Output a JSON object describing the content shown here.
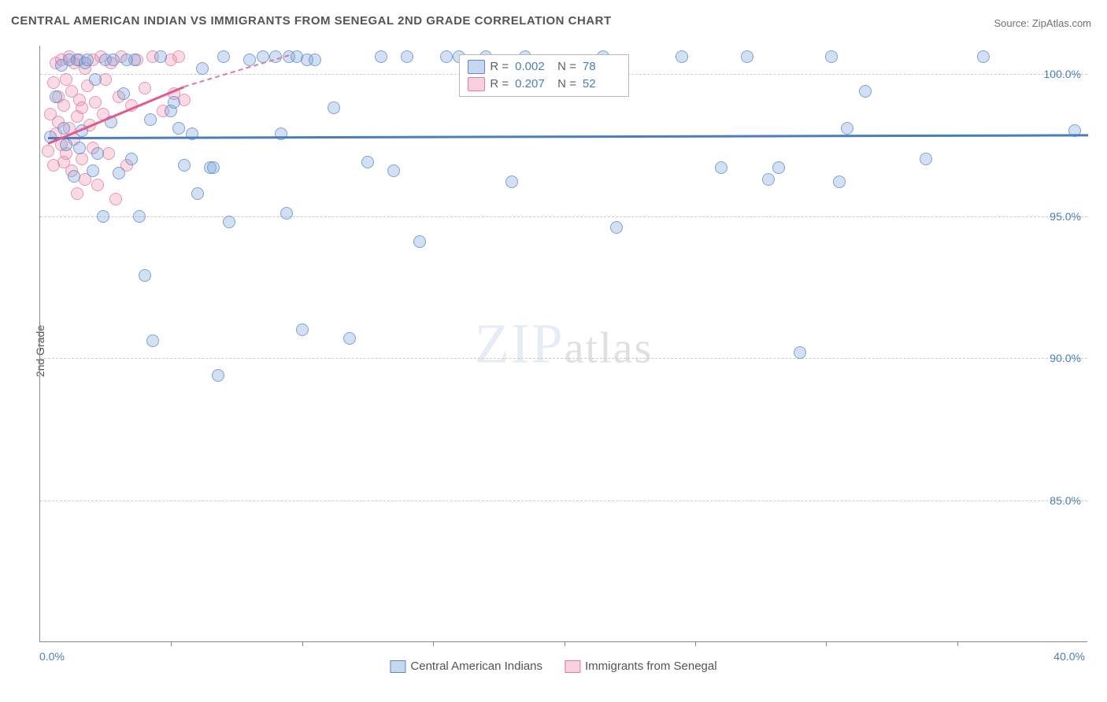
{
  "title": "CENTRAL AMERICAN INDIAN VS IMMIGRANTS FROM SENEGAL 2ND GRADE CORRELATION CHART",
  "source": "Source: ZipAtlas.com",
  "ylabel": "2nd Grade",
  "watermark": {
    "zip": "ZIP",
    "atlas": "atlas"
  },
  "chart": {
    "type": "scatter",
    "xlim": [
      0,
      40
    ],
    "ylim": [
      80,
      101
    ],
    "xtick_step": 5,
    "yticks": [
      85.0,
      90.0,
      95.0,
      100.0
    ],
    "ytick_labels": [
      "85.0%",
      "90.0%",
      "95.0%",
      "100.0%"
    ],
    "xtick_min_label": "0.0%",
    "xtick_max_label": "40.0%",
    "marker_size": 16,
    "grid_color": "#cccccc",
    "background_color": "#ffffff",
    "axis_color": "#888888",
    "label_fontsize": 14,
    "title_fontsize": 15,
    "tick_color": "#4a7ebb"
  },
  "series": {
    "blue": {
      "label": "Central American Indians",
      "R": "0.002",
      "N": "78",
      "color": "#5a88c8",
      "fill": "rgba(120,160,220,0.42)",
      "trend": {
        "x1": 0.3,
        "y1": 97.8,
        "x2": 40.0,
        "y2": 97.9,
        "dashed": false
      },
      "points": [
        [
          0.4,
          97.8
        ],
        [
          0.6,
          99.2
        ],
        [
          0.8,
          100.3
        ],
        [
          0.9,
          98.1
        ],
        [
          1.0,
          97.5
        ],
        [
          1.1,
          100.5
        ],
        [
          1.3,
          96.4
        ],
        [
          1.4,
          100.5
        ],
        [
          1.5,
          97.4
        ],
        [
          1.6,
          98.0
        ],
        [
          1.7,
          100.4
        ],
        [
          1.8,
          100.5
        ],
        [
          2.0,
          96.6
        ],
        [
          2.1,
          99.8
        ],
        [
          2.2,
          97.2
        ],
        [
          2.4,
          95.0
        ],
        [
          2.5,
          100.5
        ],
        [
          2.7,
          98.3
        ],
        [
          2.8,
          100.5
        ],
        [
          3.0,
          96.5
        ],
        [
          3.2,
          99.3
        ],
        [
          3.3,
          100.5
        ],
        [
          3.5,
          97.0
        ],
        [
          3.6,
          100.5
        ],
        [
          3.8,
          95.0
        ],
        [
          4.0,
          92.9
        ],
        [
          4.2,
          98.4
        ],
        [
          4.3,
          90.6
        ],
        [
          4.6,
          100.6
        ],
        [
          5.0,
          98.7
        ],
        [
          5.1,
          99.0
        ],
        [
          5.3,
          98.1
        ],
        [
          5.5,
          96.8
        ],
        [
          5.8,
          97.9
        ],
        [
          6.0,
          95.8
        ],
        [
          6.2,
          100.2
        ],
        [
          6.5,
          96.7
        ],
        [
          6.6,
          96.7
        ],
        [
          6.8,
          89.4
        ],
        [
          7.0,
          100.6
        ],
        [
          7.2,
          94.8
        ],
        [
          8.0,
          100.5
        ],
        [
          8.5,
          100.6
        ],
        [
          9.0,
          100.6
        ],
        [
          9.2,
          97.9
        ],
        [
          9.4,
          95.1
        ],
        [
          9.5,
          100.6
        ],
        [
          9.8,
          100.6
        ],
        [
          10.0,
          91.0
        ],
        [
          10.2,
          100.5
        ],
        [
          10.5,
          100.5
        ],
        [
          11.2,
          98.8
        ],
        [
          11.8,
          90.7
        ],
        [
          12.5,
          96.9
        ],
        [
          13.0,
          100.6
        ],
        [
          13.5,
          96.6
        ],
        [
          14.0,
          100.6
        ],
        [
          14.5,
          94.1
        ],
        [
          15.5,
          100.6
        ],
        [
          16.0,
          100.6
        ],
        [
          17.0,
          100.6
        ],
        [
          18.0,
          96.2
        ],
        [
          18.5,
          100.6
        ],
        [
          21.5,
          100.6
        ],
        [
          22.0,
          94.6
        ],
        [
          24.5,
          100.6
        ],
        [
          26.0,
          96.7
        ],
        [
          27.0,
          100.6
        ],
        [
          27.8,
          96.3
        ],
        [
          28.2,
          96.7
        ],
        [
          29.0,
          90.2
        ],
        [
          30.2,
          100.6
        ],
        [
          30.5,
          96.2
        ],
        [
          30.8,
          98.1
        ],
        [
          31.5,
          99.4
        ],
        [
          33.8,
          97.0
        ],
        [
          36.0,
          100.6
        ],
        [
          39.5,
          98.0
        ]
      ]
    },
    "pink": {
      "label": "Immigrants from Senegal",
      "R": "0.207",
      "N": "52",
      "color": "#e07aa0",
      "fill": "rgba(240,140,170,0.40)",
      "trend_solid": {
        "x1": 0.3,
        "y1": 97.6,
        "x2": 5.5,
        "y2": 99.6
      },
      "trend_dashed": {
        "x1": 5.5,
        "y1": 99.6,
        "x2": 9.5,
        "y2": 100.7
      },
      "points": [
        [
          0.3,
          97.3
        ],
        [
          0.4,
          98.6
        ],
        [
          0.5,
          99.7
        ],
        [
          0.5,
          96.8
        ],
        [
          0.6,
          100.4
        ],
        [
          0.6,
          97.9
        ],
        [
          0.7,
          98.3
        ],
        [
          0.7,
          99.2
        ],
        [
          0.8,
          100.5
        ],
        [
          0.8,
          97.5
        ],
        [
          0.9,
          96.9
        ],
        [
          0.9,
          98.9
        ],
        [
          1.0,
          99.8
        ],
        [
          1.0,
          97.2
        ],
        [
          1.1,
          100.6
        ],
        [
          1.1,
          98.1
        ],
        [
          1.2,
          96.6
        ],
        [
          1.2,
          99.4
        ],
        [
          1.3,
          100.4
        ],
        [
          1.3,
          97.7
        ],
        [
          1.4,
          98.5
        ],
        [
          1.4,
          95.8
        ],
        [
          1.5,
          99.1
        ],
        [
          1.5,
          100.5
        ],
        [
          1.6,
          97.0
        ],
        [
          1.6,
          98.8
        ],
        [
          1.7,
          100.2
        ],
        [
          1.7,
          96.3
        ],
        [
          1.8,
          99.6
        ],
        [
          1.9,
          98.2
        ],
        [
          2.0,
          100.5
        ],
        [
          2.0,
          97.4
        ],
        [
          2.1,
          99.0
        ],
        [
          2.2,
          96.1
        ],
        [
          2.3,
          100.6
        ],
        [
          2.4,
          98.6
        ],
        [
          2.5,
          99.8
        ],
        [
          2.6,
          97.2
        ],
        [
          2.7,
          100.4
        ],
        [
          2.9,
          95.6
        ],
        [
          3.0,
          99.2
        ],
        [
          3.1,
          100.6
        ],
        [
          3.3,
          96.8
        ],
        [
          3.5,
          98.9
        ],
        [
          3.7,
          100.5
        ],
        [
          4.0,
          99.5
        ],
        [
          4.3,
          100.6
        ],
        [
          4.7,
          98.7
        ],
        [
          5.0,
          100.5
        ],
        [
          5.1,
          99.3
        ],
        [
          5.3,
          100.6
        ],
        [
          5.5,
          99.1
        ]
      ]
    }
  },
  "legend_stats": {
    "r_label": "R =",
    "n_label": "N ="
  },
  "bottom_legend": {
    "blue": "Central American Indians",
    "pink": "Immigrants from Senegal"
  }
}
